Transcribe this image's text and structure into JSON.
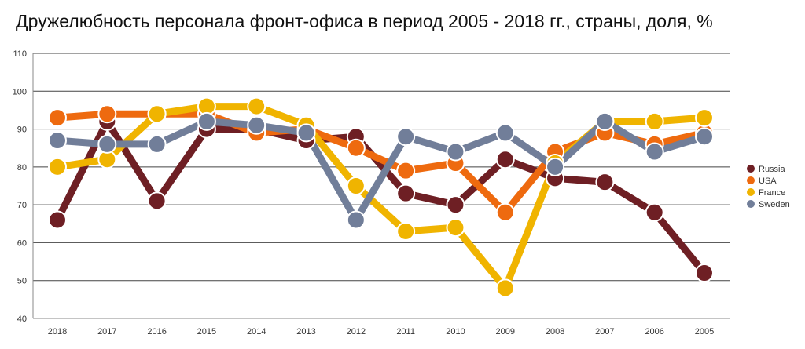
{
  "title": "Дружелюбность персонала фронт-офиса в период 2005 - 2018 гг., страны, доля, %",
  "chart_data": {
    "type": "line",
    "title": "Дружелюбность персонала фронт-офиса в период 2005 - 2018 гг., страны, доля, %",
    "xlabel": "",
    "ylabel": "",
    "categories": [
      "2018",
      "2017",
      "2016",
      "2015",
      "2014",
      "2013",
      "2012",
      "2011",
      "2010",
      "2009",
      "2008",
      "2007",
      "2006",
      "2005"
    ],
    "ylim": [
      40,
      110
    ],
    "yticks": [
      40,
      50,
      60,
      70,
      80,
      90,
      100,
      110
    ],
    "grid": true,
    "legend_position": "right",
    "series": [
      {
        "name": "Russia",
        "color": "#6e1f24",
        "values": [
          66,
          92,
          71,
          90,
          90,
          87,
          88,
          73,
          70,
          82,
          77,
          76,
          68,
          52
        ]
      },
      {
        "name": "USA",
        "color": "#ee6a0f",
        "values": [
          93,
          94,
          94,
          94,
          89,
          90,
          85,
          79,
          81,
          68,
          84,
          89,
          86,
          89
        ]
      },
      {
        "name": "France",
        "color": "#f0b400",
        "values": [
          80,
          82,
          94,
          96,
          96,
          91,
          75,
          63,
          64,
          48,
          81,
          92,
          92,
          93
        ]
      },
      {
        "name": "Sweden",
        "color": "#717e99",
        "values": [
          87,
          86,
          86,
          92,
          91,
          89,
          66,
          88,
          84,
          89,
          80,
          92,
          84,
          88
        ]
      }
    ]
  }
}
